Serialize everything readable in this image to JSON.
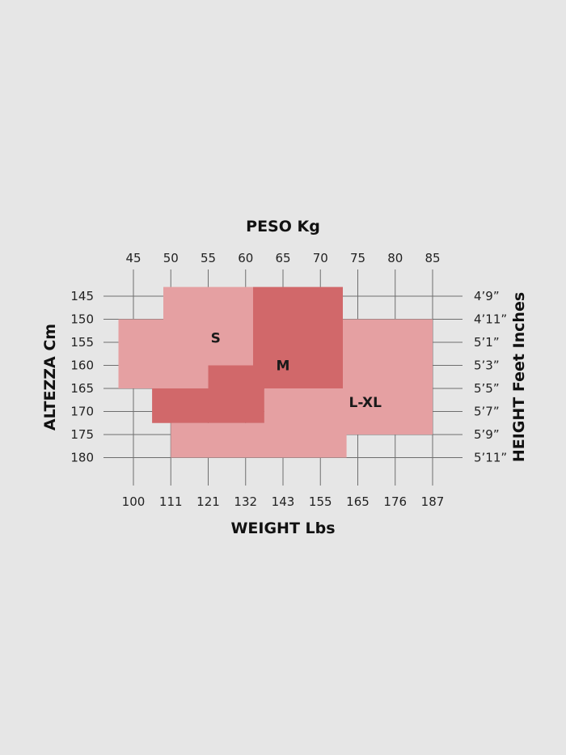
{
  "chart_data": {
    "type": "size-chart",
    "title_top": "PESO Kg",
    "title_bottom": "WEIGHT Lbs",
    "title_left": "ALTEZZA Cm",
    "title_right": "HEIGHT Feet Inches",
    "weight_kg_ticks": [
      45,
      50,
      55,
      60,
      65,
      70,
      75,
      80,
      85
    ],
    "weight_lbs_ticks": [
      "100",
      "111",
      "121",
      "132",
      "143",
      "155",
      "165",
      "176",
      "187"
    ],
    "height_cm_ticks": [
      145,
      150,
      155,
      160,
      165,
      170,
      175,
      180
    ],
    "height_ftin_ticks": [
      "4’9”",
      "4’11”",
      "5’1”",
      "5’3”",
      "5’5”",
      "5’7”",
      "5’9”",
      "5’11”"
    ],
    "xlim_kg": [
      45,
      85
    ],
    "ylim_cm": [
      145,
      180
    ],
    "grid": true,
    "zones": [
      {
        "label": "S",
        "color": "#e5a0a2",
        "polygon_kg_cm": [
          [
            49,
            143
          ],
          [
            61,
            143
          ],
          [
            61,
            150
          ],
          [
            65,
            150
          ],
          [
            65,
            160
          ],
          [
            55,
            160
          ],
          [
            55,
            165
          ],
          [
            43,
            165
          ],
          [
            43,
            150
          ],
          [
            49,
            150
          ]
        ]
      },
      {
        "label": "L-XL",
        "color": "#e5a0a2",
        "polygon_kg_cm": [
          [
            73,
            150
          ],
          [
            85,
            150
          ],
          [
            85,
            175
          ],
          [
            73.5,
            175
          ],
          [
            73.5,
            180
          ],
          [
            50,
            180
          ],
          [
            50,
            172.5
          ],
          [
            62.5,
            172.5
          ],
          [
            62.5,
            165
          ],
          [
            73,
            165
          ]
        ]
      },
      {
        "label": "M",
        "color": "#d1686a",
        "polygon_kg_cm": [
          [
            61,
            143
          ],
          [
            73,
            143
          ],
          [
            73,
            165
          ],
          [
            62.5,
            165
          ],
          [
            62.5,
            172.5
          ],
          [
            47.5,
            172.5
          ],
          [
            47.5,
            165
          ],
          [
            55,
            165
          ],
          [
            55,
            160
          ],
          [
            61,
            160
          ]
        ]
      }
    ]
  }
}
